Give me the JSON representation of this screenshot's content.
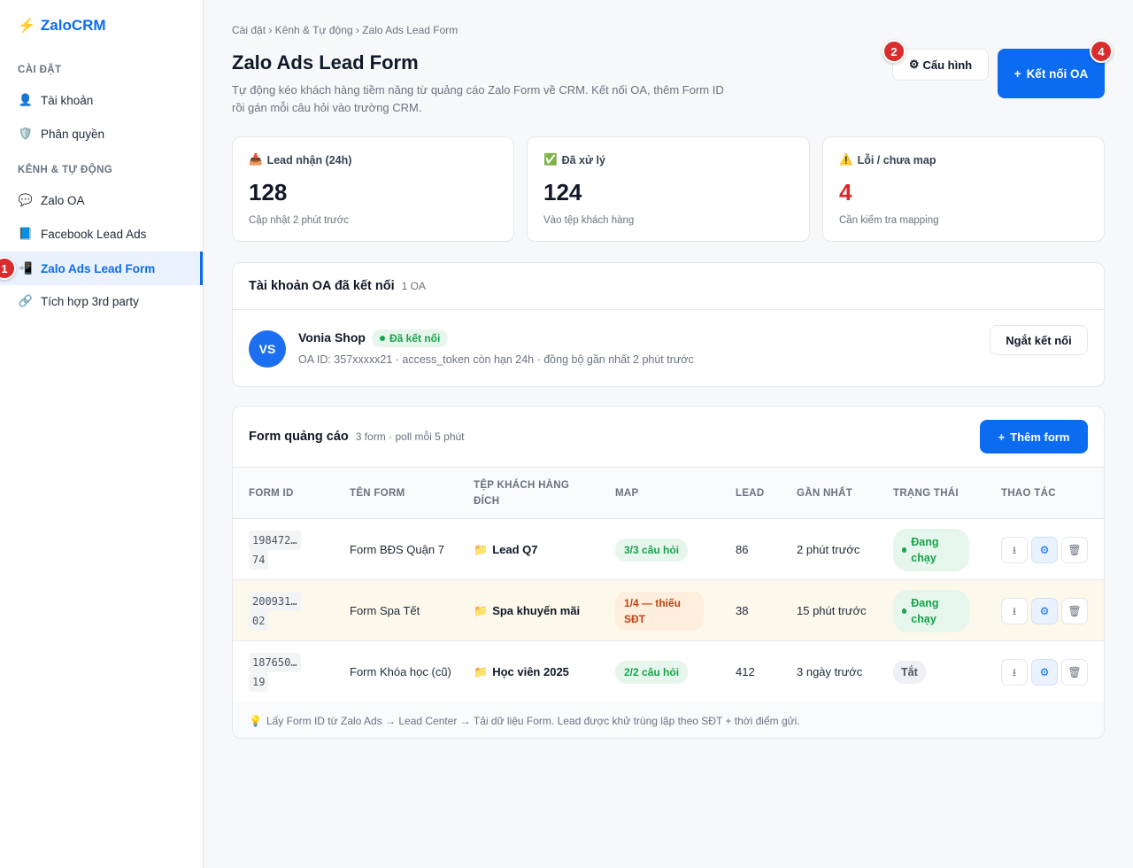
{
  "app": {
    "logo": "ZaloCRM"
  },
  "sidebar": {
    "section_settings": "CÀI ĐẶT",
    "section_channels": "KÊNH & TỰ ĐỘNG",
    "items": [
      {
        "label": "Tài khoản",
        "icon": "user-icon"
      },
      {
        "label": "Phân quyền",
        "icon": "shield-icon"
      },
      {
        "label": "Zalo OA",
        "icon": "chat-icon"
      },
      {
        "label": "Facebook Lead Ads",
        "icon": "facebook-icon"
      },
      {
        "label": "Zalo Ads Lead Form",
        "icon": "phone-icon"
      },
      {
        "label": "Tích hợp 3rd party",
        "icon": "link-icon"
      }
    ]
  },
  "markers": [
    "1",
    "2",
    "4"
  ],
  "header": {
    "breadcrumb": "Cài đặt › Kênh & Tự động › Zalo Ads Lead Form",
    "title": "Zalo Ads Lead Form",
    "description": "Tự động kéo khách hàng tiềm năng từ quảng cáo Zalo Form về CRM. Kết nối OA, thêm Form ID rồi gán mỗi câu hỏi vào trường CRM.",
    "config_label": "Cấu hình",
    "connect_label": "Kết nối OA"
  },
  "stats": [
    {
      "label": "Lead nhận (24h)",
      "value": "128",
      "sub": "Cập nhật 2 phút trước"
    },
    {
      "label": "Đã xử lý",
      "value": "124",
      "sub": "Vào tệp khách hàng"
    },
    {
      "label": "Lỗi / chưa map",
      "value": "4",
      "sub": "Cần kiểm tra mapping"
    }
  ],
  "oa": {
    "title": "Tài khoản OA đã kết nối",
    "count": "1 OA",
    "avatar": "VS",
    "name": "Vonia Shop",
    "status": "Đã kết nối",
    "meta": "OA ID: 357xxxxx21 · access_token còn hạn 24h · đồng bộ gần nhất 2 phút trước",
    "disconnect_label": "Ngắt kết nối"
  },
  "forms": {
    "title": "Form quảng cáo",
    "count": "3 form · poll mỗi 5 phút",
    "add_label": "Thêm form",
    "columns": [
      "FORM ID",
      "TÊN FORM",
      "TỆP KHÁCH HÀNG ĐÍCH",
      "MAP",
      "LEAD",
      "GẦN NHẤT",
      "TRẠNG THÁI",
      "THAO TÁC"
    ],
    "rows": [
      {
        "id1": "198472…",
        "id2": "74",
        "name": "Form BĐS Quận 7",
        "segment": "Lead Q7",
        "map": "3/3 câu hỏi",
        "lead": "86",
        "last": "2 phút trước",
        "status": "Đang chạy"
      },
      {
        "id1": "200931…",
        "id2": "02",
        "name": "Form Spa Tết",
        "segment": "Spa khuyến mãi",
        "map": "1/4 — thiếu SĐT",
        "lead": "38",
        "last": "15 phút trước",
        "status": "Đang chạy"
      },
      {
        "id1": "187650…",
        "id2": "19",
        "name": "Form Khóa học (cũ)",
        "segment": "Học viên 2025",
        "map": "2/2 câu hỏi",
        "lead": "412",
        "last": "3 ngày trước",
        "status": "Tắt"
      }
    ],
    "footer": "Lấy Form ID từ Zalo Ads → Lead Center → Tải dữ liệu Form. Lead được khử trùng lặp theo SĐT + thời điểm gửi."
  },
  "colors": {
    "accent": "#0b6cf2",
    "success": "#16a34a",
    "danger": "#dc2626",
    "warning": "#c2410c"
  }
}
